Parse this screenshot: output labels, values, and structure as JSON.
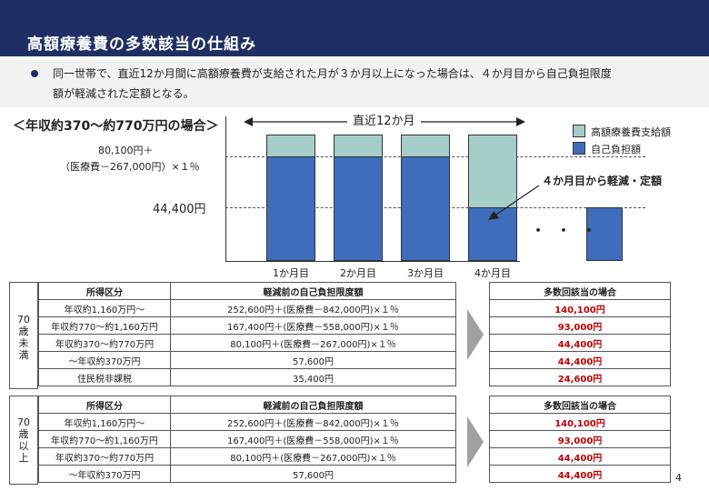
{
  "header": {
    "title": "高額療養費の多数該当の仕組み"
  },
  "bullet": {
    "line1": "同一世帯で、直近12か月間に高額療養費が支給された月が３か月以上になった場合は、４か月目から自己負担限度",
    "line2": "額が軽減された定額となる。"
  },
  "scenario": {
    "title": "＜年収約370～約770万円の場合＞",
    "formula_line1": "80,100円＋",
    "formula_line2": "（医療費－267,000円）×１％",
    "amount": "44,400円",
    "period": "直近12か月",
    "legend": {
      "top": "高額療養費支給額",
      "bottom": "自己負担額"
    },
    "callout": "４か月目から軽減・定額",
    "ellipsis": "・・・",
    "months": [
      "1か月目",
      "2か月目",
      "3か月目",
      "4か月目"
    ],
    "colors": {
      "top": "#a6cdc8",
      "bottom": "#3f6dbb",
      "header": "#1f2e63",
      "emphasis": "#c00000"
    }
  },
  "under70": {
    "label": [
      "70",
      "歳",
      "未",
      "満"
    ],
    "headers": {
      "category": "所得区分",
      "limit": "軽減前の自己負担限度額",
      "result": "多数回該当の場合"
    },
    "rows": [
      {
        "category": "年収約1,160万円～",
        "limit": "252,600円＋(医療費－842,000円)×１％",
        "result": "140,100円"
      },
      {
        "category": "年収約770～約1,160万円",
        "limit": "167,400円＋(医療費－558,000円)×１％",
        "result": "93,000円"
      },
      {
        "category": "年収約370～約770万円",
        "limit": "80,100円＋(医療費－267,000円)×１％",
        "result": "44,400円"
      },
      {
        "category": "～年収約370万円",
        "limit": "57,600円",
        "result": "44,400円"
      },
      {
        "category": "住民税非課税",
        "limit": "35,400円",
        "result": "24,600円"
      }
    ]
  },
  "over70": {
    "label": [
      "70",
      "歳",
      "以",
      "上"
    ],
    "headers": {
      "category": "所得区分",
      "limit": "軽減前の自己負担限度額",
      "result": "多数回該当の場合"
    },
    "rows": [
      {
        "category": "年収約1,160万円～",
        "limit": "252,600円＋(医療費－842,000円)×１％",
        "result": "140,100円"
      },
      {
        "category": "年収約770～約1,160万円",
        "limit": "167,400円＋(医療費－558,000円)×１％",
        "result": "93,000円"
      },
      {
        "category": "年収約370～約770万円",
        "limit": "80,100円＋(医療費－267,000円)×１％",
        "result": "44,400円"
      },
      {
        "category": "～年収約370万円",
        "limit": "57,600円",
        "result": "44,400円"
      }
    ]
  },
  "page": {
    "number": "4"
  }
}
